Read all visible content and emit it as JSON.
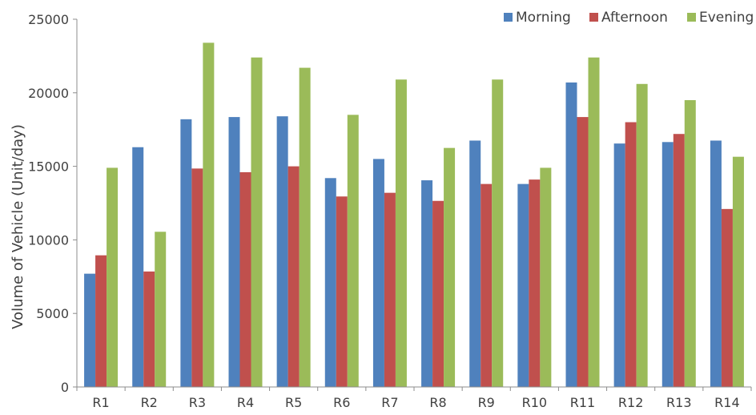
{
  "chart_data": {
    "type": "bar",
    "title": "",
    "xlabel": "",
    "ylabel": "Volume of Vehicle (Unit/day)",
    "ylim": [
      0,
      25000
    ],
    "yticks": [
      0,
      5000,
      10000,
      15000,
      20000,
      25000
    ],
    "grid": false,
    "legend_position": "top-right",
    "categories": [
      "R1",
      "R2",
      "R3",
      "R4",
      "R5",
      "R6",
      "R7",
      "R8",
      "R9",
      "R10",
      "R11",
      "R12",
      "R13",
      "R14"
    ],
    "series": [
      {
        "name": "Morning",
        "color": "#4F81BD",
        "values": [
          7700,
          16300,
          18200,
          18350,
          18400,
          14200,
          15500,
          14050,
          16750,
          13800,
          20700,
          16550,
          16650,
          16750
        ]
      },
      {
        "name": "Afternoon",
        "color": "#C0504D",
        "values": [
          8950,
          7850,
          14850,
          14600,
          15000,
          12950,
          13200,
          12650,
          13800,
          14100,
          18350,
          18000,
          17200,
          12100
        ]
      },
      {
        "name": "Evening",
        "color": "#9BBB59",
        "values": [
          14900,
          10550,
          23400,
          22400,
          21700,
          18500,
          20900,
          16250,
          20900,
          14900,
          22400,
          20600,
          19500,
          15650
        ]
      }
    ]
  }
}
